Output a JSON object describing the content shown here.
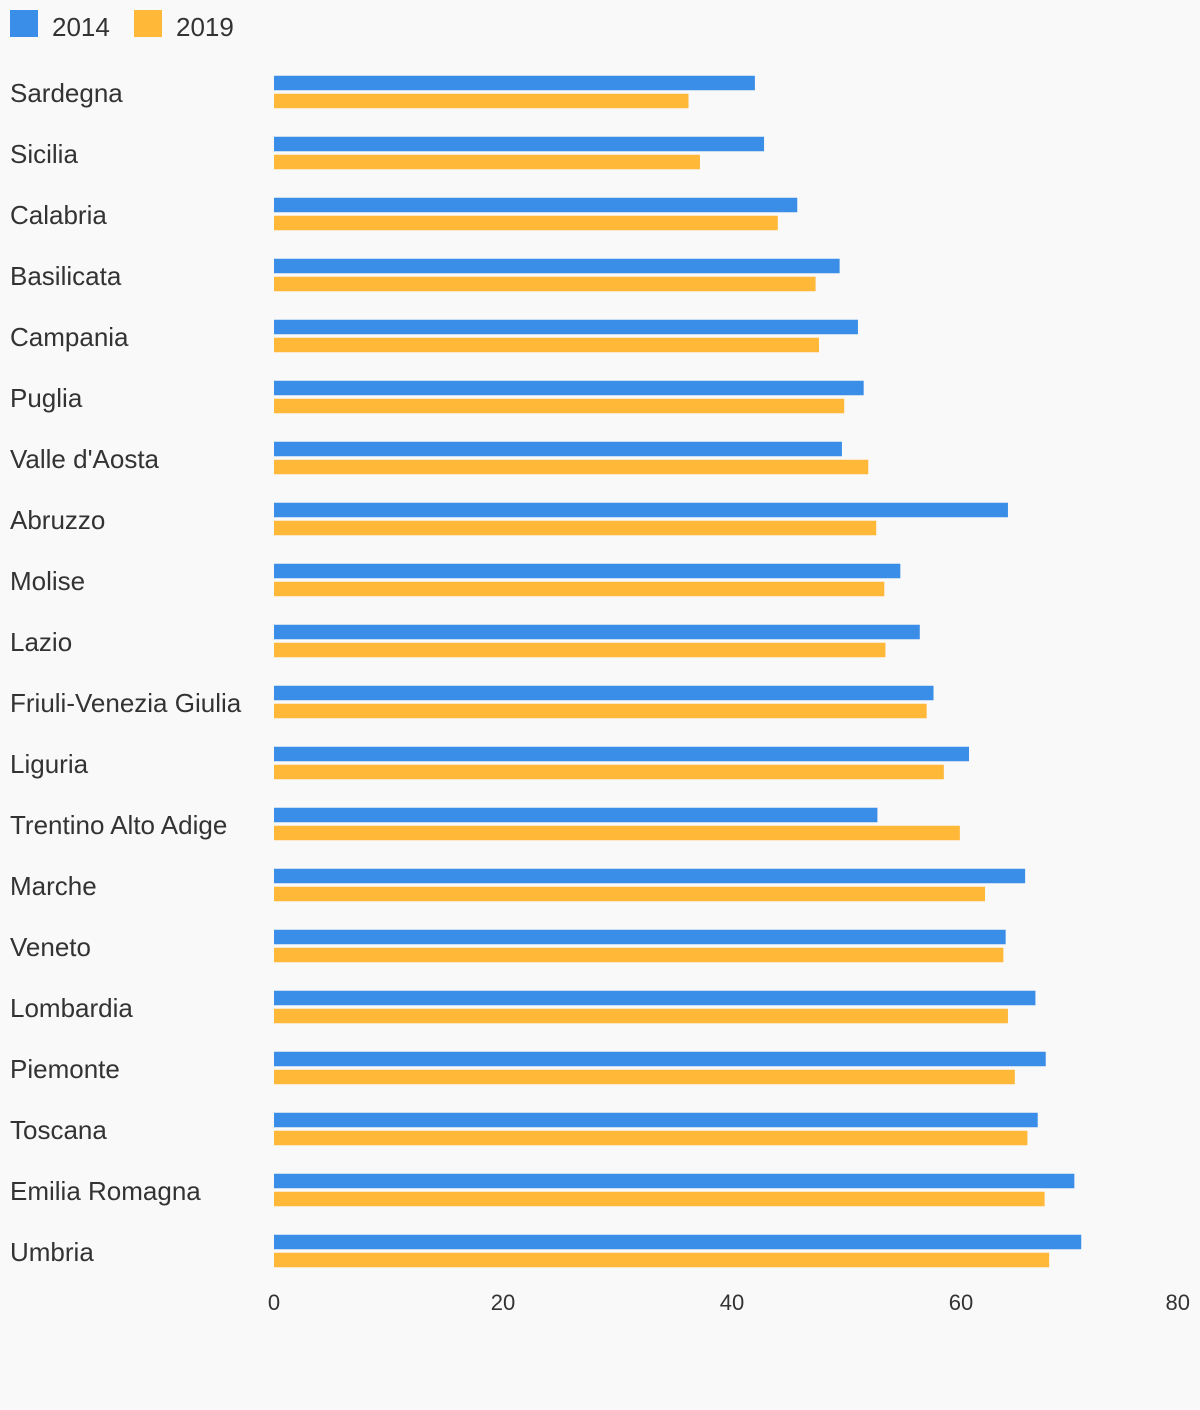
{
  "colors": {
    "background": "#f9f9f9",
    "series_2014": "#3a8ee8",
    "series_2019": "#ffb838",
    "text": "#333333"
  },
  "chart_data": {
    "type": "bar",
    "orientation": "horizontal",
    "legend_position": "top-left",
    "grid": false,
    "categories": [
      "Sardegna",
      "Sicilia",
      "Calabria",
      "Basilicata",
      "Campania",
      "Puglia",
      "Valle d'Aosta",
      "Abruzzo",
      "Molise",
      "Lazio",
      "Friuli-Venezia Giulia",
      "Liguria",
      "Trentino Alto Adige",
      "Marche",
      "Veneto",
      "Lombardia",
      "Piemonte",
      "Toscana",
      "Emilia Romagna",
      "Umbria"
    ],
    "series": [
      {
        "name": "2014",
        "color": "#3a8ee8",
        "values": [
          42.0,
          42.8,
          45.7,
          49.4,
          51.0,
          51.5,
          49.6,
          64.1,
          54.7,
          56.4,
          57.6,
          60.7,
          52.7,
          65.6,
          63.9,
          66.5,
          67.4,
          66.7,
          69.9,
          70.5
        ]
      },
      {
        "name": "2019",
        "color": "#ffb838",
        "values": [
          36.2,
          37.2,
          44.0,
          47.3,
          47.6,
          49.8,
          51.9,
          52.6,
          53.3,
          53.4,
          57.0,
          58.5,
          59.9,
          62.1,
          63.7,
          64.1,
          64.7,
          65.8,
          67.3,
          67.7
        ]
      }
    ],
    "xlim": [
      0,
      80
    ],
    "xticks": [
      "0",
      "20",
      "40",
      "60",
      "80"
    ],
    "title": "",
    "xlabel": "",
    "ylabel": ""
  }
}
